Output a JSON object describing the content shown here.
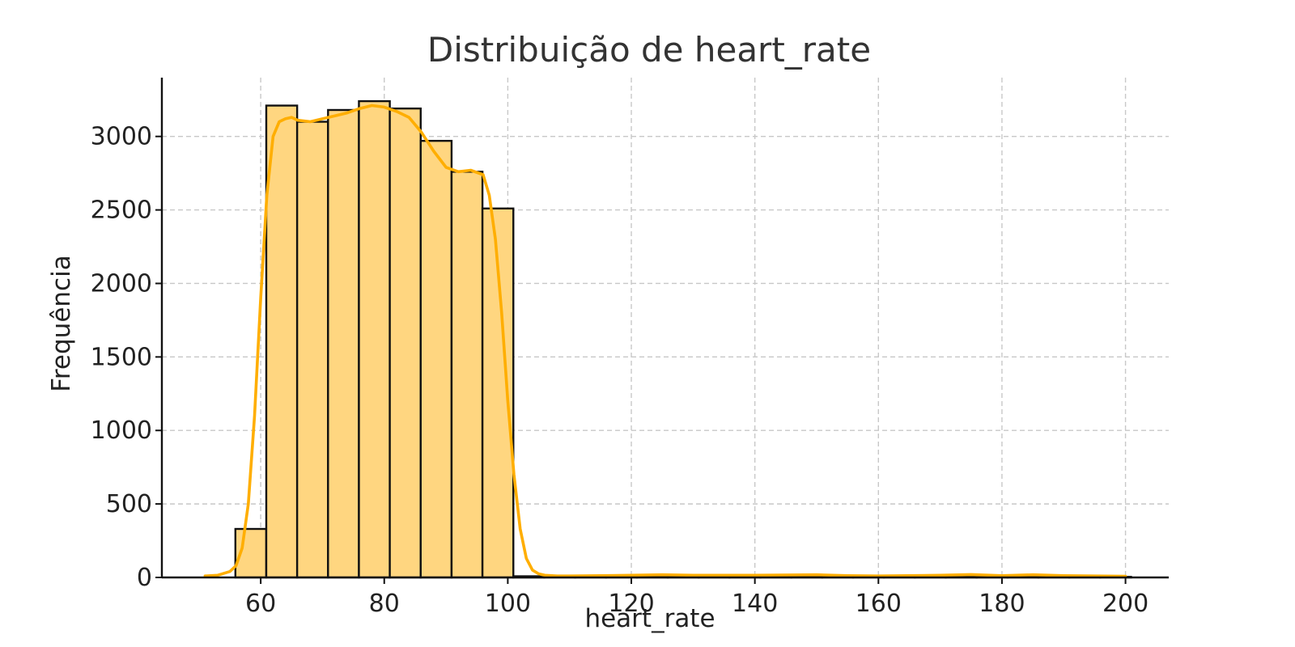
{
  "chart_data": {
    "type": "bar",
    "title": "Distribuição de heart_rate",
    "xlabel": "heart_rate",
    "ylabel": "Frequência",
    "xlim": [
      44,
      207
    ],
    "ylim": [
      0,
      3400
    ],
    "xticks": [
      60,
      80,
      100,
      120,
      140,
      160,
      180,
      200
    ],
    "yticks": [
      0,
      500,
      1000,
      1500,
      2000,
      2500,
      3000
    ],
    "grid": true,
    "colors": {
      "bar_fill": "#ffd680",
      "bar_edge": "#111111",
      "kde": "#ffae00"
    },
    "bins": [
      {
        "x0": 55.9,
        "x1": 60.9,
        "count": 330
      },
      {
        "x0": 60.9,
        "x1": 65.9,
        "count": 3210
      },
      {
        "x0": 65.9,
        "x1": 70.9,
        "count": 3100
      },
      {
        "x0": 70.9,
        "x1": 75.9,
        "count": 3180
      },
      {
        "x0": 75.9,
        "x1": 80.9,
        "count": 3240
      },
      {
        "x0": 80.9,
        "x1": 85.9,
        "count": 3190
      },
      {
        "x0": 85.9,
        "x1": 90.9,
        "count": 2970
      },
      {
        "x0": 90.9,
        "x1": 95.9,
        "count": 2760
      },
      {
        "x0": 95.9,
        "x1": 100.9,
        "count": 2510
      },
      {
        "x0": 100.9,
        "x1": 105.9,
        "count": 8
      },
      {
        "x0": 105.9,
        "x1": 110.9,
        "count": 3
      },
      {
        "x0": 110.9,
        "x1": 115.9,
        "count": 3
      },
      {
        "x0": 115.9,
        "x1": 120.9,
        "count": 4
      },
      {
        "x0": 120.9,
        "x1": 125.9,
        "count": 4
      },
      {
        "x0": 125.9,
        "x1": 130.9,
        "count": 6
      },
      {
        "x0": 130.9,
        "x1": 135.9,
        "count": 4
      },
      {
        "x0": 135.9,
        "x1": 140.9,
        "count": 4
      },
      {
        "x0": 140.9,
        "x1": 145.9,
        "count": 4
      },
      {
        "x0": 145.9,
        "x1": 150.9,
        "count": 6
      },
      {
        "x0": 150.9,
        "x1": 155.9,
        "count": 6
      },
      {
        "x0": 155.9,
        "x1": 160.9,
        "count": 3
      },
      {
        "x0": 160.9,
        "x1": 165.9,
        "count": 4
      },
      {
        "x0": 165.9,
        "x1": 170.9,
        "count": 5
      },
      {
        "x0": 170.9,
        "x1": 175.9,
        "count": 7
      },
      {
        "x0": 175.9,
        "x1": 180.9,
        "count": 5
      },
      {
        "x0": 180.9,
        "x1": 185.9,
        "count": 4
      },
      {
        "x0": 185.9,
        "x1": 190.9,
        "count": 5
      },
      {
        "x0": 190.9,
        "x1": 195.9,
        "count": 3
      },
      {
        "x0": 195.9,
        "x1": 200.9,
        "count": 4
      }
    ],
    "kde": {
      "x": [
        51,
        53,
        55,
        56,
        57,
        58,
        59,
        60,
        61,
        62,
        63,
        64,
        65,
        66,
        68,
        70,
        72,
        74,
        76,
        78,
        80,
        82,
        84,
        86,
        88,
        90,
        92,
        94,
        96,
        97,
        98,
        99,
        100,
        101,
        102,
        103,
        104,
        105,
        106,
        108,
        110,
        115,
        120,
        125,
        130,
        140,
        150,
        155,
        160,
        170,
        175,
        180,
        185,
        190,
        195,
        200
      ],
      "y": [
        10,
        15,
        40,
        80,
        200,
        500,
        1100,
        1900,
        2600,
        3000,
        3100,
        3120,
        3130,
        3110,
        3100,
        3120,
        3140,
        3160,
        3190,
        3210,
        3200,
        3170,
        3130,
        3030,
        2900,
        2790,
        2760,
        2770,
        2740,
        2600,
        2300,
        1800,
        1200,
        700,
        330,
        130,
        50,
        25,
        15,
        10,
        10,
        12,
        15,
        18,
        15,
        15,
        18,
        12,
        10,
        15,
        20,
        12,
        18,
        12,
        10,
        8
      ]
    }
  }
}
